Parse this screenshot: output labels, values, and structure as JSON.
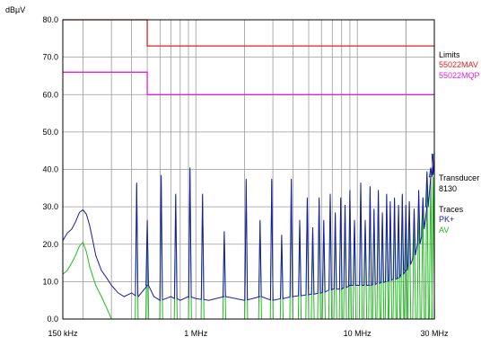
{
  "chart_data": {
    "type": "line",
    "ylabel": "dBµV",
    "ylim": [
      0,
      80
    ],
    "y_ticks": [
      "0.0",
      "10.0",
      "20.0",
      "30.0",
      "40.0",
      "50.0",
      "60.0",
      "70.0",
      "80.0"
    ],
    "x_scale": "log",
    "xlim_hz": [
      150000,
      30000000
    ],
    "x_ticks": [
      {
        "label": "150 kHz",
        "value": 150000
      },
      {
        "label": "1 MHz",
        "value": 1000000
      },
      {
        "label": "10 MHz",
        "value": 10000000
      },
      {
        "label": "30 MHz",
        "value": 30000000
      }
    ],
    "grid": true,
    "legend": {
      "limits_heading": "Limits",
      "transducer_heading": "Transducer",
      "transducer_value": "8130",
      "traces_heading": "Traces"
    },
    "limits": [
      {
        "name": "55022MAV",
        "color": "#e02020",
        "points": [
          [
            150000,
            80
          ],
          [
            500000,
            80
          ],
          [
            500000,
            73
          ],
          [
            30000000,
            73
          ]
        ]
      },
      {
        "name": "55022MQP",
        "color": "#e020e0",
        "points": [
          [
            150000,
            66
          ],
          [
            500000,
            66
          ],
          [
            500000,
            60
          ],
          [
            30000000,
            60
          ]
        ]
      }
    ],
    "series": [
      {
        "name": "PK+",
        "color": "#1a1aa8",
        "points": [
          [
            150000,
            21
          ],
          [
            160000,
            23
          ],
          [
            170000,
            24
          ],
          [
            180000,
            26
          ],
          [
            190000,
            28.5
          ],
          [
            200000,
            29.2
          ],
          [
            210000,
            28
          ],
          [
            220000,
            25
          ],
          [
            230000,
            21
          ],
          [
            240000,
            17
          ],
          [
            260000,
            13
          ],
          [
            280000,
            11
          ],
          [
            300000,
            9
          ],
          [
            330000,
            7
          ],
          [
            360000,
            6
          ],
          [
            400000,
            7
          ],
          [
            440000,
            6
          ],
          [
            480000,
            8
          ],
          [
            500000,
            9
          ],
          [
            550000,
            6
          ],
          [
            600000,
            5
          ],
          [
            700000,
            6
          ],
          [
            800000,
            5
          ],
          [
            900000,
            6
          ],
          [
            1000000,
            5.5
          ],
          [
            1200000,
            5
          ],
          [
            1500000,
            6
          ],
          [
            2000000,
            5
          ],
          [
            2500000,
            6
          ],
          [
            3000000,
            5
          ],
          [
            4000000,
            6
          ],
          [
            5000000,
            6.5
          ],
          [
            6000000,
            7
          ],
          [
            7000000,
            8
          ],
          [
            8000000,
            8
          ],
          [
            9000000,
            9
          ],
          [
            10000000,
            9
          ],
          [
            12000000,
            9
          ],
          [
            15000000,
            10
          ],
          [
            18000000,
            11
          ],
          [
            20000000,
            13
          ],
          [
            22000000,
            16
          ],
          [
            25000000,
            22
          ],
          [
            27000000,
            30
          ],
          [
            28500000,
            38
          ],
          [
            29500000,
            44
          ],
          [
            30000000,
            45
          ]
        ]
      },
      {
        "name": "AV",
        "color": "#22bb22",
        "points": [
          [
            150000,
            12
          ],
          [
            160000,
            13
          ],
          [
            170000,
            15
          ],
          [
            180000,
            17
          ],
          [
            190000,
            19.5
          ],
          [
            200000,
            20.5
          ],
          [
            210000,
            18
          ],
          [
            220000,
            14
          ],
          [
            240000,
            9
          ],
          [
            260000,
            6
          ],
          [
            280000,
            3
          ],
          [
            300000,
            0
          ]
        ],
        "peaks": [
          [
            430000,
            36
          ],
          [
            500000,
            26
          ],
          [
            610000,
            38
          ],
          [
            750000,
            33
          ],
          [
            920000,
            40
          ],
          [
            1100000,
            33
          ],
          [
            1500000,
            23
          ],
          [
            2050000,
            37
          ],
          [
            2500000,
            26
          ],
          [
            2950000,
            37
          ],
          [
            3400000,
            22
          ],
          [
            3900000,
            37
          ],
          [
            4400000,
            26
          ],
          [
            4900000,
            32
          ],
          [
            5300000,
            24
          ],
          [
            5800000,
            32
          ],
          [
            6200000,
            26
          ],
          [
            6800000,
            33
          ],
          [
            7300000,
            28
          ],
          [
            7900000,
            32
          ],
          [
            8400000,
            30
          ],
          [
            9000000,
            34
          ],
          [
            9600000,
            26
          ],
          [
            10500000,
            36
          ],
          [
            11200000,
            26
          ],
          [
            12000000,
            35
          ],
          [
            12700000,
            29
          ],
          [
            13500000,
            34
          ],
          [
            14300000,
            28
          ],
          [
            15200000,
            33
          ],
          [
            16000000,
            31
          ],
          [
            17000000,
            32
          ],
          [
            18000000,
            30
          ],
          [
            19000000,
            33
          ],
          [
            20000000,
            30
          ],
          [
            21000000,
            31
          ],
          [
            22500000,
            29
          ],
          [
            24000000,
            34
          ],
          [
            25500000,
            32
          ],
          [
            27000000,
            39
          ],
          [
            28500000,
            40
          ],
          [
            29500000,
            38
          ]
        ]
      }
    ]
  }
}
